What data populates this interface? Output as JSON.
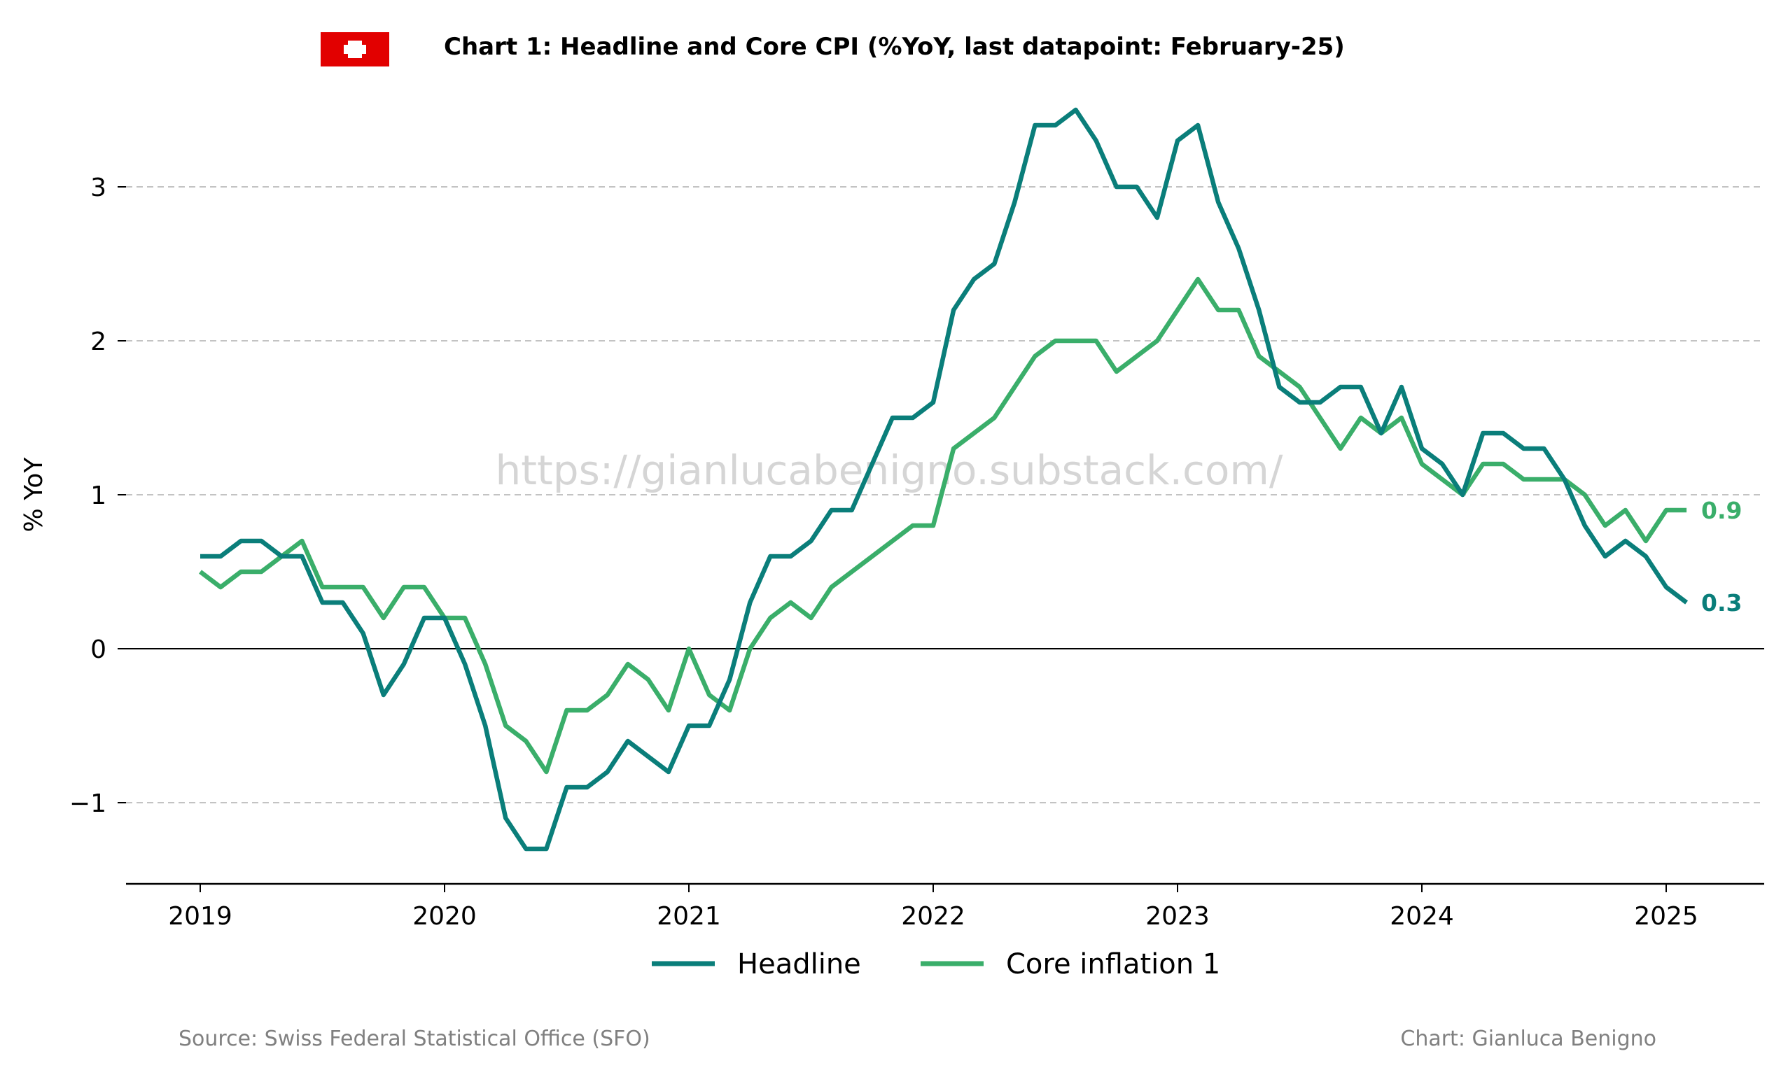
{
  "header": {
    "title": "Chart 1: Headline and Core CPI (%YoY, last datapoint: February-25)",
    "flag_icon": "swiss-flag-icon"
  },
  "watermark": "https://gianlucabenigno.substack.com/",
  "footer": {
    "source": "Source: Swiss Federal Statistical Office (SFO)",
    "credit": "Chart: Gianluca Benigno"
  },
  "colors": {
    "headline": "#0a7e7a",
    "core": "#3aae6a",
    "flag_red": "#e20000",
    "grid": "#c3c3c3"
  },
  "chart_data": {
    "type": "line",
    "title": "Chart 1: Headline and Core CPI (%YoY, last datapoint: February-25)",
    "xlabel": "",
    "ylabel": "% YoY",
    "x_ticks": [
      "2019",
      "2020",
      "2021",
      "2022",
      "2023",
      "2024",
      "2025"
    ],
    "y_ticks": [
      "3",
      "2",
      "1",
      "0",
      "−1"
    ],
    "ylim": [
      -1.5,
      3.6
    ],
    "xlim": [
      "2018-09",
      "2025-06"
    ],
    "grid": "horizontal dashed",
    "legend_position": "bottom-center",
    "x": [
      "2019-01",
      "2019-02",
      "2019-03",
      "2019-04",
      "2019-05",
      "2019-06",
      "2019-07",
      "2019-08",
      "2019-09",
      "2019-10",
      "2019-11",
      "2019-12",
      "2020-01",
      "2020-02",
      "2020-03",
      "2020-04",
      "2020-05",
      "2020-06",
      "2020-07",
      "2020-08",
      "2020-09",
      "2020-10",
      "2020-11",
      "2020-12",
      "2021-01",
      "2021-02",
      "2021-03",
      "2021-04",
      "2021-05",
      "2021-06",
      "2021-07",
      "2021-08",
      "2021-09",
      "2021-10",
      "2021-11",
      "2021-12",
      "2022-01",
      "2022-02",
      "2022-03",
      "2022-04",
      "2022-05",
      "2022-06",
      "2022-07",
      "2022-08",
      "2022-09",
      "2022-10",
      "2022-11",
      "2022-12",
      "2023-01",
      "2023-02",
      "2023-03",
      "2023-04",
      "2023-05",
      "2023-06",
      "2023-07",
      "2023-08",
      "2023-09",
      "2023-10",
      "2023-11",
      "2023-12",
      "2024-01",
      "2024-02",
      "2024-03",
      "2024-04",
      "2024-05",
      "2024-06",
      "2024-07",
      "2024-08",
      "2024-09",
      "2024-10",
      "2024-11",
      "2024-12",
      "2025-01",
      "2025-02"
    ],
    "series": [
      {
        "name": "Headline",
        "end_label": "0.3",
        "values": [
          0.6,
          0.6,
          0.7,
          0.7,
          0.6,
          0.6,
          0.3,
          0.3,
          0.1,
          -0.3,
          -0.1,
          0.2,
          0.2,
          -0.1,
          -0.5,
          -1.1,
          -1.3,
          -1.3,
          -0.9,
          -0.9,
          -0.8,
          -0.6,
          -0.7,
          -0.8,
          -0.5,
          -0.5,
          -0.2,
          0.3,
          0.6,
          0.6,
          0.7,
          0.9,
          0.9,
          1.2,
          1.5,
          1.5,
          1.6,
          2.2,
          2.4,
          2.5,
          2.9,
          3.4,
          3.4,
          3.5,
          3.3,
          3.0,
          3.0,
          2.8,
          3.3,
          3.4,
          2.9,
          2.6,
          2.2,
          1.7,
          1.6,
          1.6,
          1.7,
          1.7,
          1.4,
          1.7,
          1.3,
          1.2,
          1.0,
          1.4,
          1.4,
          1.3,
          1.3,
          1.1,
          0.8,
          0.6,
          0.7,
          0.6,
          0.4,
          0.3
        ]
      },
      {
        "name": "Core inflation 1",
        "end_label": "0.9",
        "values": [
          0.5,
          0.4,
          0.5,
          0.5,
          0.6,
          0.7,
          0.4,
          0.4,
          0.4,
          0.2,
          0.4,
          0.4,
          0.2,
          0.2,
          -0.1,
          -0.5,
          -0.6,
          -0.8,
          -0.4,
          -0.4,
          -0.3,
          -0.1,
          -0.2,
          -0.4,
          0.0,
          -0.3,
          -0.4,
          0.0,
          0.2,
          0.3,
          0.2,
          0.4,
          0.5,
          0.6,
          0.7,
          0.8,
          0.8,
          1.3,
          1.4,
          1.5,
          1.7,
          1.9,
          2.0,
          2.0,
          2.0,
          1.8,
          1.9,
          2.0,
          2.2,
          2.4,
          2.2,
          2.2,
          1.9,
          1.8,
          1.7,
          1.5,
          1.3,
          1.5,
          1.4,
          1.5,
          1.2,
          1.1,
          1.0,
          1.2,
          1.2,
          1.1,
          1.1,
          1.1,
          1.0,
          0.8,
          0.9,
          0.7,
          0.9,
          0.9
        ]
      }
    ]
  }
}
